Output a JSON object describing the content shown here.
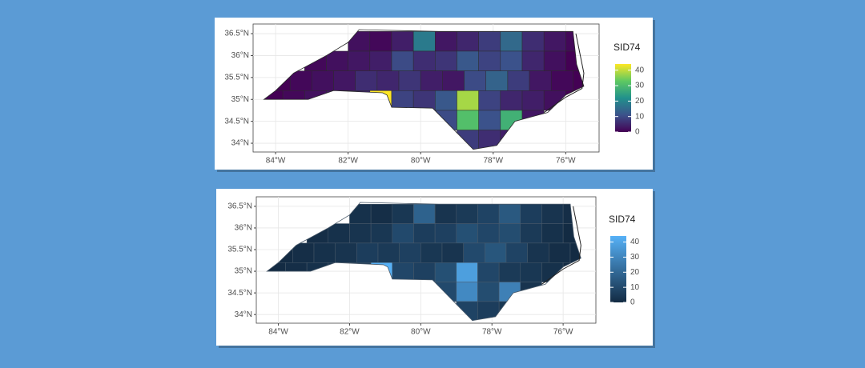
{
  "maps": [
    {
      "legend_title": "SID74",
      "palette": [
        "#440154",
        "#3b528b",
        "#21918c",
        "#5ec962",
        "#fde725"
      ],
      "border_color": "#2b2b2b",
      "xlim": [
        -84.62,
        -75.08
      ],
      "ylim": [
        33.8,
        36.72
      ],
      "xticks": [
        {
          "value": -84,
          "label": "84°W"
        },
        {
          "value": -82,
          "label": "82°W"
        },
        {
          "value": -80,
          "label": "80°W"
        },
        {
          "value": -78,
          "label": "78°W"
        },
        {
          "value": -76,
          "label": "76°W"
        }
      ],
      "yticks": [
        {
          "value": 34,
          "label": "34°N"
        },
        {
          "value": 34.5,
          "label": "34.5°N"
        },
        {
          "value": 35,
          "label": "35°N"
        },
        {
          "value": 35.5,
          "label": "35.5°N"
        },
        {
          "value": 36,
          "label": "36°N"
        },
        {
          "value": 36.5,
          "label": "36.5°N"
        }
      ],
      "legend_lim": [
        0,
        44
      ],
      "legend_ticks": [
        0,
        10,
        20,
        30,
        40
      ],
      "grid": true
    },
    {
      "legend_title": "SID74",
      "palette": [
        "#132b43",
        "#56b1f7"
      ],
      "border_color": "#4a5a6a",
      "xlim": [
        -84.62,
        -75.08
      ],
      "ylim": [
        33.8,
        36.72
      ],
      "xticks": [
        {
          "value": -84,
          "label": "84°W"
        },
        {
          "value": -82,
          "label": "82°W"
        },
        {
          "value": -80,
          "label": "80°W"
        },
        {
          "value": -78,
          "label": "78°W"
        },
        {
          "value": -76,
          "label": "76°W"
        }
      ],
      "yticks": [
        {
          "value": 34,
          "label": "34°N"
        },
        {
          "value": 34.5,
          "label": "34.5°N"
        },
        {
          "value": 35,
          "label": "35°N"
        },
        {
          "value": 35.5,
          "label": "35.5°N"
        },
        {
          "value": 36,
          "label": "36°N"
        },
        {
          "value": 36.5,
          "label": "36.5°N"
        }
      ],
      "legend_lim": [
        0,
        44
      ],
      "legend_ticks": [
        0,
        10,
        20,
        30,
        40
      ],
      "grid": true
    }
  ],
  "county_values": [
    2,
    1,
    4,
    18,
    3,
    5,
    8,
    15,
    6,
    3,
    1,
    1,
    2,
    3,
    4,
    10,
    6,
    7,
    12,
    9,
    11,
    5,
    2,
    0,
    0,
    1,
    2,
    3,
    6,
    5,
    7,
    4,
    3,
    10,
    14,
    8,
    3,
    1,
    0,
    0,
    1,
    2,
    3,
    5,
    44,
    9,
    7,
    12,
    38,
    9,
    5,
    4,
    2,
    0,
    10,
    31,
    11,
    28,
    3,
    8,
    6,
    4
  ]
}
